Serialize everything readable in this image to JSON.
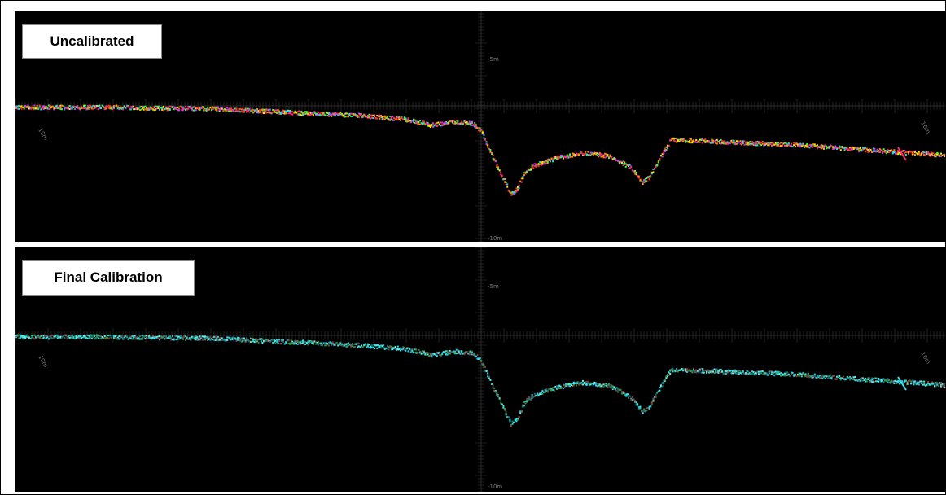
{
  "panels": [
    {
      "id": "uncalibrated",
      "label": "Uncalibrated",
      "scale_labels": {
        "upper": "-5m",
        "lower": "-10m",
        "left": "10m",
        "right": "10m"
      },
      "colors": [
        "#ff2b7a",
        "#ffe600",
        "#3cff3c",
        "#ff3030",
        "#c040ff",
        "#20e0e0",
        "#ff8c00"
      ]
    },
    {
      "id": "final-calibration",
      "label": "Final Calibration",
      "scale_labels": {
        "upper": "-5m",
        "lower": "-10m",
        "left": "10m",
        "right": "10m"
      },
      "colors": [
        "#33e6f0",
        "#2ac8d8",
        "#3c8f3c",
        "#8a3a3a",
        "#5cf0f0",
        "#227070"
      ]
    }
  ]
}
